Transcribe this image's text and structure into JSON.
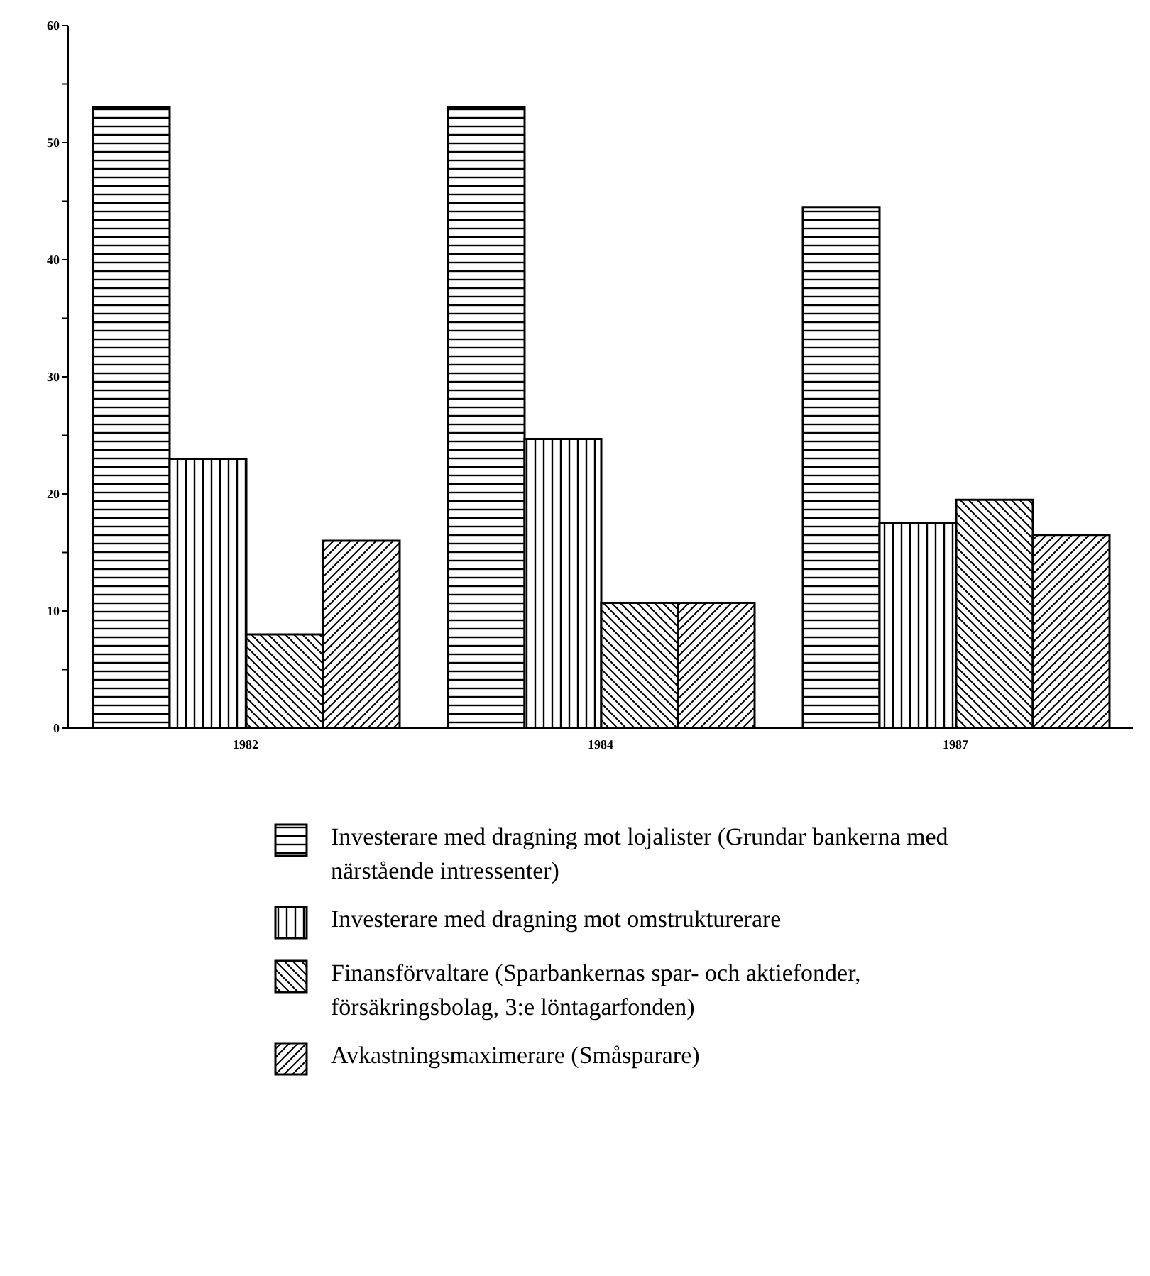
{
  "chart_data": {
    "type": "bar",
    "categories": [
      "1982",
      "1984",
      "1987"
    ],
    "series": [
      {
        "name": "Investerare med dragning mot lojalister (Grundar bankerna med närstående intressenter)",
        "color": "#000000",
        "values": [
          53,
          53,
          44.5
        ]
      },
      {
        "name": "Investerare med dragning mot omstrukturerare",
        "color": "#000000",
        "values": [
          23,
          24.7,
          17.5
        ]
      },
      {
        "name": "Finansförvaltare (Sparbankernas spar- och aktiefonder, försäkringsbolag, 3:e löntagarfonden)",
        "color": "#000000",
        "values": [
          8,
          10.7,
          19.5
        ]
      },
      {
        "name": "Avkastningsmaximerare (Småsparare)",
        "color": "#000000",
        "values": [
          16,
          10.7,
          16.5
        ]
      }
    ],
    "ylim": [
      0,
      60
    ],
    "yticks": [
      0,
      {
        "value": 5,
        "label": null
      },
      10,
      {
        "value": 15,
        "label": null
      },
      20,
      {
        "value": 25,
        "label": null
      },
      30,
      {
        "value": 35,
        "label": null
      },
      40,
      {
        "value": 45,
        "label": null
      },
      50,
      {
        "value": 55,
        "label": null
      },
      60
    ],
    "grid": false,
    "legend": "bottom"
  }
}
